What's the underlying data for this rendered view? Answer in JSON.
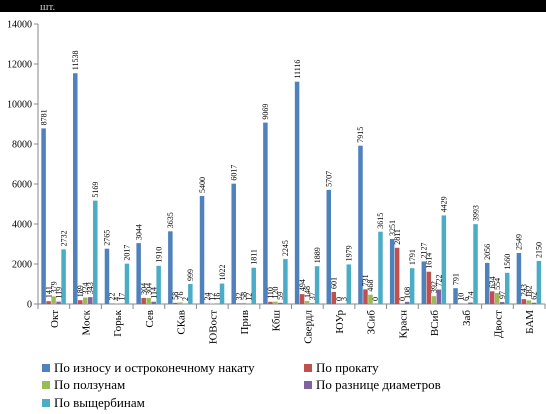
{
  "chart_data": {
    "type": "bar",
    "unit_label": "шт.",
    "categories": [
      "Окт",
      "Моск",
      "Горьк",
      "Сев",
      "СКав",
      "ЮВост",
      "Прив",
      "Кбш",
      "Свердл",
      "ЮУр",
      "ЗСиб",
      "Красн",
      "ВСиб",
      "Заб",
      "Двост",
      "БАМ"
    ],
    "ylim": [
      0,
      14000
    ],
    "yticks": [
      0,
      2000,
      4000,
      6000,
      8000,
      10000,
      12000,
      14000
    ],
    "grid": false,
    "legend_position": "bottom",
    "series": [
      {
        "name": "По износу и остроконечному накату",
        "color": "#4F81BD",
        "values": [
          8781,
          11538,
          2765,
          3044,
          3635,
          5400,
          6017,
          9069,
          11116,
          5707,
          7915,
          3251,
          2127,
          791,
          2056,
          2549
        ]
      },
      {
        "name": "По прокату",
        "color": "#C0504D",
        "values": [
          141,
          189,
          22,
          304,
          58,
          24,
          32,
          110,
          494,
          601,
          731,
          2811,
          1614,
          10,
          634,
          243
        ]
      },
      {
        "name": "По ползунам",
        "color": "#9BBB59",
        "values": [
          379,
          324,
          4,
          304,
          76,
          12,
          58,
          120,
          148,
          0,
          468,
          0,
          392,
          6,
          554,
          182
        ]
      },
      {
        "name": "По разнице диаметров",
        "color": "#8064A2",
        "values": [
          119,
          343,
          17,
          114,
          2,
          16,
          12,
          59,
          37,
          3,
          0,
          108,
          722,
          74,
          97,
          62
        ]
      },
      {
        "name": "По выщербинам",
        "color": "#4BACC6",
        "values": [
          2732,
          5169,
          2017,
          1910,
          999,
          1022,
          1811,
          2245,
          1889,
          1979,
          3615,
          1791,
          4429,
          3993,
          1560,
          2150
        ]
      }
    ],
    "value_labels": [
      [
        "8781",
        "141",
        "379",
        "119",
        "2732"
      ],
      [
        "11538",
        "189",
        "324",
        "343",
        "5169"
      ],
      [
        "2765",
        "22",
        "4",
        "17",
        "2017"
      ],
      [
        "3044",
        "304",
        "304",
        "114",
        "1910"
      ],
      [
        "3635",
        "58",
        "76",
        "2",
        "999"
      ],
      [
        "5400",
        "24",
        "12",
        "16",
        "1022"
      ],
      [
        "6017",
        "32",
        "58",
        "12",
        "1811"
      ],
      [
        "9069",
        "110",
        "120",
        "59",
        "2245"
      ],
      [
        "11116",
        "494",
        "148",
        "37",
        "1889"
      ],
      [
        "5707",
        "601",
        "0",
        "3",
        "1979"
      ],
      [
        "7915",
        "731",
        "468",
        "0",
        "3615"
      ],
      [
        "3251",
        "2811",
        "0",
        "108",
        "1791"
      ],
      [
        "2127",
        "1614",
        "392",
        "722",
        "4429"
      ],
      [
        "791",
        "10",
        "6",
        "74",
        "3993"
      ],
      [
        "2056",
        "634",
        "554",
        "97",
        "1560"
      ],
      [
        "2549",
        "243",
        "182",
        "62",
        "2150"
      ]
    ]
  }
}
